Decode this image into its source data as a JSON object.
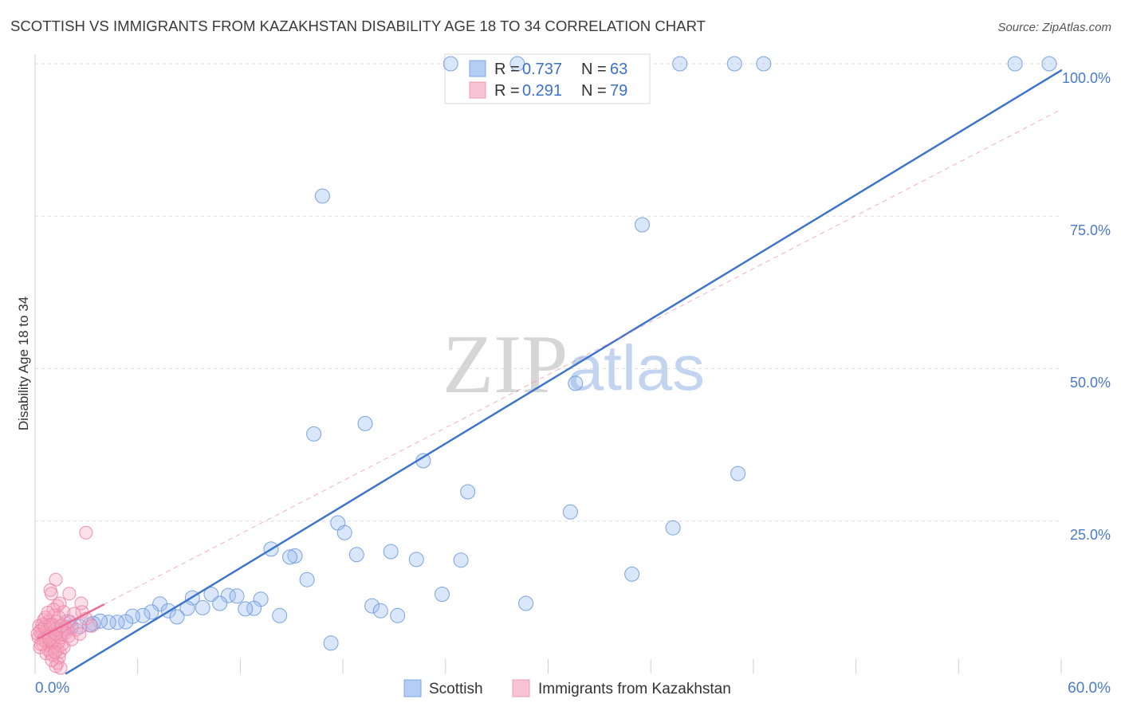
{
  "watermark": {
    "zip": "ZIP",
    "atlas": "atlas"
  },
  "legend": {
    "r_label": "R =",
    "n_label": "N ="
  },
  "chart_data": {
    "type": "scatter",
    "title": "SCOTTISH VS IMMIGRANTS FROM KAZAKHSTAN DISABILITY AGE 18 TO 34 CORRELATION CHART",
    "source": "Source: ZipAtlas.com",
    "xlabel": "",
    "ylabel": "Disability Age 18 to 34",
    "xlim": [
      0,
      60
    ],
    "ylim": [
      0,
      100
    ],
    "x_tick_labels": [
      {
        "value": 0,
        "label": "0.0%"
      },
      {
        "value": 60,
        "label": "60.0%"
      }
    ],
    "x_minor_ticks": [
      6,
      12,
      18,
      24,
      30,
      36,
      42,
      48,
      54,
      60
    ],
    "y_ticks": [
      {
        "value": 25,
        "label": "25.0%"
      },
      {
        "value": 50,
        "label": "50.0%"
      },
      {
        "value": 75,
        "label": "75.0%"
      },
      {
        "value": 100,
        "label": "100.0%"
      }
    ],
    "series": [
      {
        "name": "Scottish",
        "r": "0.737",
        "n": "63",
        "marker_fill": "#9dbdf0",
        "marker_stroke": "#6e9ae0",
        "legend_fill": "#b3cdf3",
        "legend_stroke": "#7ea5e3",
        "line_color": "#3d74cc",
        "trend": {
          "slope": 1.7,
          "intercept": -3.09,
          "x_start": 1.82,
          "x_end": 60
        },
        "points": [
          [
            24.3,
            100
          ],
          [
            28.2,
            100
          ],
          [
            37.7,
            100
          ],
          [
            40.9,
            100
          ],
          [
            42.6,
            100
          ],
          [
            57.3,
            100
          ],
          [
            59.3,
            100
          ],
          [
            16.8,
            78.3
          ],
          [
            35.5,
            73.6
          ],
          [
            31.6,
            47.6
          ],
          [
            19.3,
            41.0
          ],
          [
            16.3,
            39.3
          ],
          [
            22.7,
            34.9
          ],
          [
            41.1,
            32.8
          ],
          [
            25.3,
            29.8
          ],
          [
            31.3,
            26.5
          ],
          [
            17.7,
            24.7
          ],
          [
            18.1,
            23.1
          ],
          [
            37.3,
            23.9
          ],
          [
            13.8,
            20.4
          ],
          [
            15.2,
            19.3
          ],
          [
            14.9,
            19.1
          ],
          [
            18.8,
            19.5
          ],
          [
            20.8,
            20.0
          ],
          [
            22.3,
            18.7
          ],
          [
            24.9,
            18.6
          ],
          [
            34.9,
            16.3
          ],
          [
            15.9,
            15.4
          ],
          [
            23.8,
            13.0
          ],
          [
            10.3,
            13.0
          ],
          [
            9.2,
            12.4
          ],
          [
            11.3,
            12.8
          ],
          [
            11.8,
            12.7
          ],
          [
            13.2,
            12.2
          ],
          [
            7.3,
            11.4
          ],
          [
            28.7,
            11.5
          ],
          [
            19.7,
            11.1
          ],
          [
            20.2,
            10.3
          ],
          [
            21.2,
            9.5
          ],
          [
            10.8,
            11.5
          ],
          [
            12.8,
            10.7
          ],
          [
            12.3,
            10.6
          ],
          [
            9.8,
            10.8
          ],
          [
            8.9,
            10.7
          ],
          [
            7.8,
            10.3
          ],
          [
            6.8,
            10.1
          ],
          [
            6.3,
            9.5
          ],
          [
            5.7,
            9.4
          ],
          [
            8.3,
            9.3
          ],
          [
            14.3,
            9.5
          ],
          [
            5.3,
            8.5
          ],
          [
            4.8,
            8.4
          ],
          [
            4.3,
            8.4
          ],
          [
            3.8,
            8.6
          ],
          [
            3.4,
            8.2
          ],
          [
            3.2,
            8.0
          ],
          [
            2.6,
            7.7
          ],
          [
            2.1,
            7.6
          ],
          [
            1.7,
            7.3
          ],
          [
            1.2,
            7.2
          ],
          [
            0.8,
            7.7
          ],
          [
            1.9,
            8.5
          ],
          [
            17.3,
            5.0
          ]
        ]
      },
      {
        "name": "Immigrants from Kazakhstan",
        "r": "0.291",
        "n": "79",
        "marker_fill": "#f5a6c1",
        "marker_stroke": "#ec86a9",
        "legend_fill": "#f8c3d5",
        "legend_stroke": "#ee9ab7",
        "line_color": "#e96b96",
        "trend": {
          "slope": 1.45,
          "intercept": 5.5,
          "x_start": 0.2,
          "solid_end": 4.0,
          "x_end": 60
        },
        "points": [
          [
            2.98,
            23.1
          ],
          [
            1.21,
            15.4
          ],
          [
            0.89,
            13.7
          ],
          [
            0.95,
            13.1
          ],
          [
            2.0,
            13.1
          ],
          [
            1.3,
            11.1
          ],
          [
            1.45,
            11.5
          ],
          [
            2.7,
            11.5
          ],
          [
            1.07,
            10.5
          ],
          [
            1.68,
            10.1
          ],
          [
            2.75,
            10.1
          ],
          [
            2.28,
            9.8
          ],
          [
            2.98,
            9.0
          ],
          [
            0.51,
            8.8
          ],
          [
            0.75,
            8.5
          ],
          [
            0.23,
            7.8
          ],
          [
            0.37,
            7.2
          ],
          [
            0.61,
            6.9
          ],
          [
            0.84,
            6.5
          ],
          [
            1.03,
            6.3
          ],
          [
            1.21,
            5.9
          ],
          [
            1.45,
            6.8
          ],
          [
            1.59,
            7.5
          ],
          [
            1.77,
            7.7
          ],
          [
            1.91,
            7.2
          ],
          [
            0.51,
            5.9
          ],
          [
            0.65,
            5.2
          ],
          [
            0.84,
            4.6
          ],
          [
            1.12,
            4.3
          ],
          [
            1.31,
            3.9
          ],
          [
            1.45,
            3.5
          ],
          [
            1.4,
            2.6
          ],
          [
            1.31,
            1.7
          ],
          [
            1.49,
            0.9
          ],
          [
            1.21,
            1.2
          ],
          [
            0.37,
            6.4
          ],
          [
            0.19,
            5.9
          ],
          [
            0.47,
            4.8
          ],
          [
            0.75,
            3.9
          ],
          [
            0.93,
            3.3
          ],
          [
            1.03,
            3.0
          ],
          [
            0.28,
            4.3
          ],
          [
            0.65,
            3.3
          ],
          [
            0.98,
            5.2
          ],
          [
            1.59,
            4.8
          ],
          [
            1.68,
            4.3
          ],
          [
            1.26,
            8.5
          ],
          [
            1.4,
            9.2
          ],
          [
            1.12,
            9.5
          ],
          [
            0.93,
            7.5
          ],
          [
            0.7,
            6.8
          ],
          [
            0.42,
            8.0
          ],
          [
            0.28,
            6.9
          ],
          [
            0.14,
            6.5
          ],
          [
            0.56,
            7.7
          ],
          [
            0.79,
            6.0
          ],
          [
            1.07,
            5.5
          ],
          [
            1.35,
            5.1
          ],
          [
            1.49,
            5.9
          ],
          [
            1.63,
            6.4
          ],
          [
            1.82,
            6.7
          ],
          [
            1.96,
            6.1
          ],
          [
            2.14,
            5.6
          ],
          [
            0.89,
            8.0
          ],
          [
            1.17,
            7.2
          ],
          [
            0.61,
            9.2
          ],
          [
            0.75,
            10.0
          ],
          [
            1.03,
            8.0
          ],
          [
            2.05,
            8.5
          ],
          [
            3.31,
            7.8
          ],
          [
            2.42,
            7.2
          ],
          [
            2.61,
            6.5
          ],
          [
            0.98,
            2.2
          ],
          [
            1.17,
            3.5
          ],
          [
            0.47,
            5.5
          ],
          [
            0.33,
            4.8
          ],
          [
            0.84,
            5.6
          ],
          [
            1.21,
            6.5
          ],
          [
            1.54,
            7.8
          ]
        ]
      }
    ]
  }
}
